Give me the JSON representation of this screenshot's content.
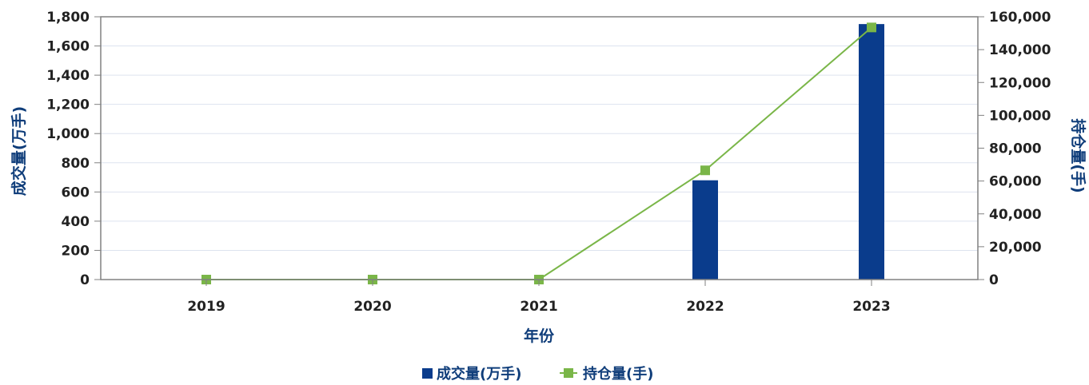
{
  "colors": {
    "bar": "#0a3c8c",
    "line": "#7ab648",
    "axis_title": "#0f3d7a",
    "grid": "#dde3ef",
    "frame": "#808080"
  },
  "chart_data": {
    "type": "bar",
    "categories": [
      "2019",
      "2020",
      "2021",
      "2022",
      "2023"
    ],
    "xlabel": "年份",
    "ylabel": "成交量(万手)",
    "y2label": "持仓量(手)",
    "ylim": [
      0,
      1800
    ],
    "y2lim": [
      0,
      160000
    ],
    "yticks": [
      "0",
      "200",
      "400",
      "600",
      "800",
      "1,000",
      "1,200",
      "1,400",
      "1,600",
      "1,800"
    ],
    "y2ticks": [
      "0",
      "20,000",
      "40,000",
      "60,000",
      "80,000",
      "100,000",
      "120,000",
      "140,000",
      "160,000"
    ],
    "grid": true,
    "legend": "bottom-center",
    "series": [
      {
        "name": "成交量(万手)",
        "type": "bar",
        "axis": "left",
        "values": [
          0,
          0,
          0,
          680,
          1750
        ]
      },
      {
        "name": "持仓量(手)",
        "type": "line",
        "axis": "right",
        "values": [
          0,
          0,
          0,
          66500,
          153500
        ]
      }
    ]
  }
}
